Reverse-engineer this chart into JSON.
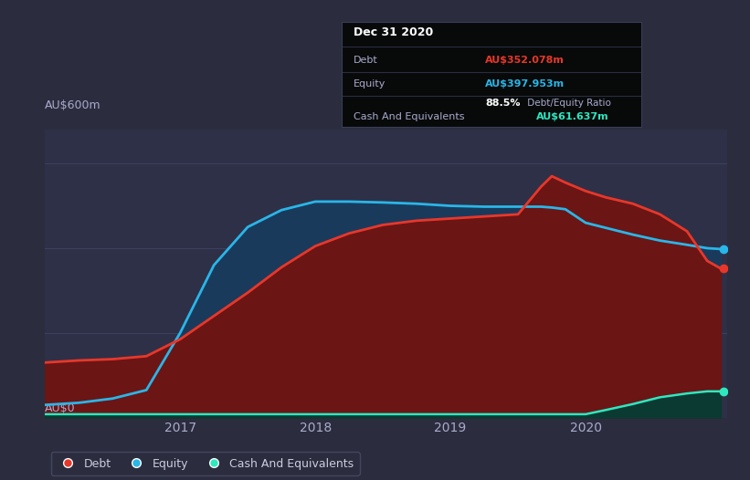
{
  "bg_color": "#2b2d3e",
  "plot_bg_color": "#2e3047",
  "grid_color": "#3d4060",
  "ylabel_text": "AU$600m",
  "y0_text": "AU$0",
  "debt_color": "#e8372a",
  "equity_color": "#29b6e8",
  "cash_color": "#2ee8c0",
  "debt_fill": "#6b1515",
  "equity_fill": "#1a3a5c",
  "cash_fill": "#0a3a32",
  "x_ticks": [
    2017,
    2018,
    2019,
    2020
  ],
  "years": [
    2016.0,
    2016.25,
    2016.5,
    2016.75,
    2017.0,
    2017.25,
    2017.5,
    2017.75,
    2018.0,
    2018.25,
    2018.5,
    2018.75,
    2019.0,
    2019.25,
    2019.5,
    2019.67,
    2019.75,
    2019.85,
    2020.0,
    2020.15,
    2020.35,
    2020.55,
    2020.75,
    2020.9,
    2021.0
  ],
  "debt": [
    130,
    135,
    138,
    145,
    185,
    240,
    295,
    355,
    405,
    435,
    455,
    465,
    470,
    475,
    480,
    545,
    570,
    555,
    535,
    520,
    505,
    480,
    440,
    370,
    352
  ],
  "equity": [
    30,
    35,
    45,
    65,
    200,
    360,
    450,
    490,
    510,
    510,
    508,
    505,
    500,
    498,
    498,
    498,
    496,
    492,
    460,
    448,
    432,
    418,
    408,
    400,
    398
  ],
  "cash": [
    8,
    8,
    8,
    8,
    8,
    8,
    8,
    8,
    8,
    8,
    8,
    8,
    8,
    8,
    8,
    8,
    8,
    8,
    8,
    18,
    32,
    48,
    57,
    62,
    62
  ],
  "ylim": [
    0,
    680
  ],
  "xlim": [
    2016.0,
    2021.05
  ],
  "tooltip": {
    "date": "Dec 31 2020",
    "debt_label": "Debt",
    "debt_val": "AU$352.078m",
    "equity_label": "Equity",
    "equity_val": "AU$397.953m",
    "ratio": "88.5%",
    "ratio_label": "Debt/Equity Ratio",
    "cash_label": "Cash And Equivalents",
    "cash_val": "AU$61.637m"
  },
  "legend_items": [
    "Debt",
    "Equity",
    "Cash And Equivalents"
  ]
}
